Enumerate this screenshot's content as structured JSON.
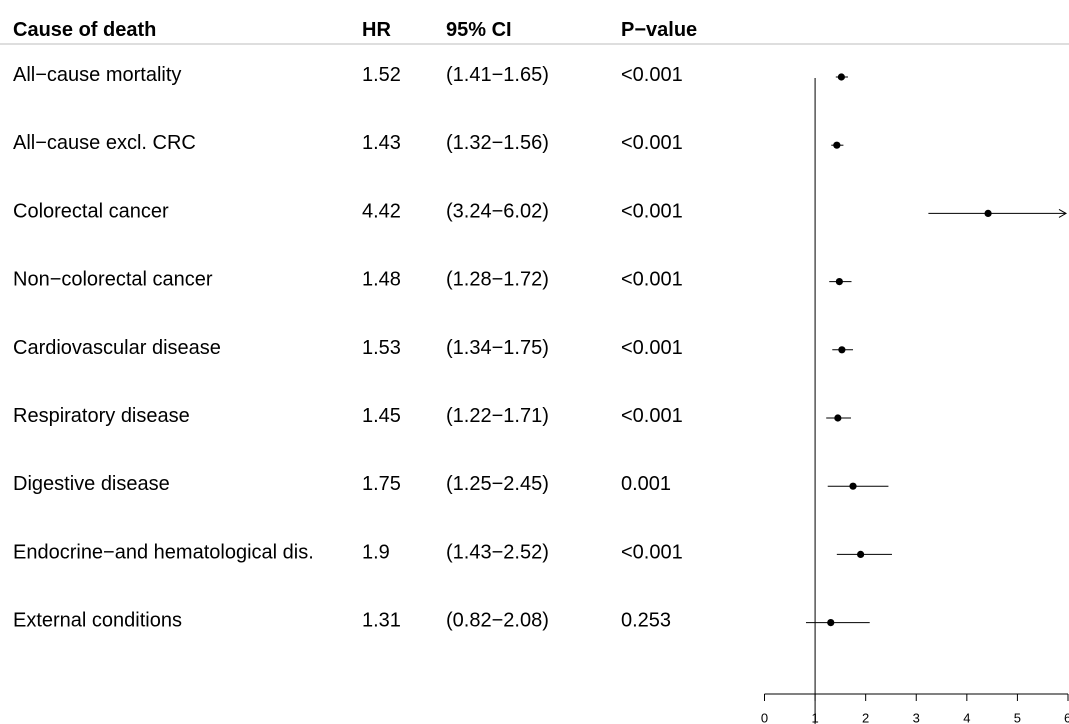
{
  "chart_data": {
    "type": "forest",
    "headers": {
      "cause": "Cause of death",
      "hr": "HR",
      "ci": "95% CI",
      "p": "P−value"
    },
    "rows": [
      {
        "cause": "All−cause mortality",
        "hr": 1.52,
        "hr_text": "1.52",
        "lo": 1.41,
        "hi": 1.65,
        "ci_text": "(1.41−1.65)",
        "p_text": "<0.001"
      },
      {
        "cause": "All−cause excl. CRC",
        "hr": 1.43,
        "hr_text": "1.43",
        "lo": 1.32,
        "hi": 1.56,
        "ci_text": "(1.32−1.56)",
        "p_text": "<0.001"
      },
      {
        "cause": "Colorectal cancer",
        "hr": 4.42,
        "hr_text": "4.42",
        "lo": 3.24,
        "hi": 6.02,
        "ci_text": "(3.24−6.02)",
        "p_text": "<0.001"
      },
      {
        "cause": "Non−colorectal cancer",
        "hr": 1.48,
        "hr_text": "1.48",
        "lo": 1.28,
        "hi": 1.72,
        "ci_text": "(1.28−1.72)",
        "p_text": "<0.001"
      },
      {
        "cause": "Cardiovascular  disease",
        "hr": 1.53,
        "hr_text": "1.53",
        "lo": 1.34,
        "hi": 1.75,
        "ci_text": "(1.34−1.75)",
        "p_text": "<0.001"
      },
      {
        "cause": "Respiratory disease",
        "hr": 1.45,
        "hr_text": "1.45",
        "lo": 1.22,
        "hi": 1.71,
        "ci_text": "(1.22−1.71)",
        "p_text": "<0.001"
      },
      {
        "cause": "Digestive disease",
        "hr": 1.75,
        "hr_text": "1.75",
        "lo": 1.25,
        "hi": 2.45,
        "ci_text": "(1.25−2.45)",
        "p_text": "0.001"
      },
      {
        "cause": "Endocrine−and hematological dis.",
        "hr": 1.9,
        "hr_text": "1.9",
        "lo": 1.43,
        "hi": 2.52,
        "ci_text": "(1.43−2.52)",
        "p_text": "<0.001"
      },
      {
        "cause": "External conditions",
        "hr": 1.31,
        "hr_text": "1.31",
        "lo": 0.82,
        "hi": 2.08,
        "ci_text": "(0.82−2.08)",
        "p_text": "0.253"
      }
    ],
    "x_axis": {
      "range": [
        0,
        6
      ],
      "ticks": [
        0,
        1,
        2,
        3,
        4,
        5,
        6
      ],
      "tick_labels": [
        "0",
        "1",
        "2",
        "3",
        "4",
        "5",
        "6"
      ]
    },
    "reference_line": 1,
    "truncated_upper": "arrow",
    "grid": false,
    "colors": {
      "text": "#000000",
      "marks": "#000000",
      "header_rule": "#bdbdbd"
    }
  }
}
